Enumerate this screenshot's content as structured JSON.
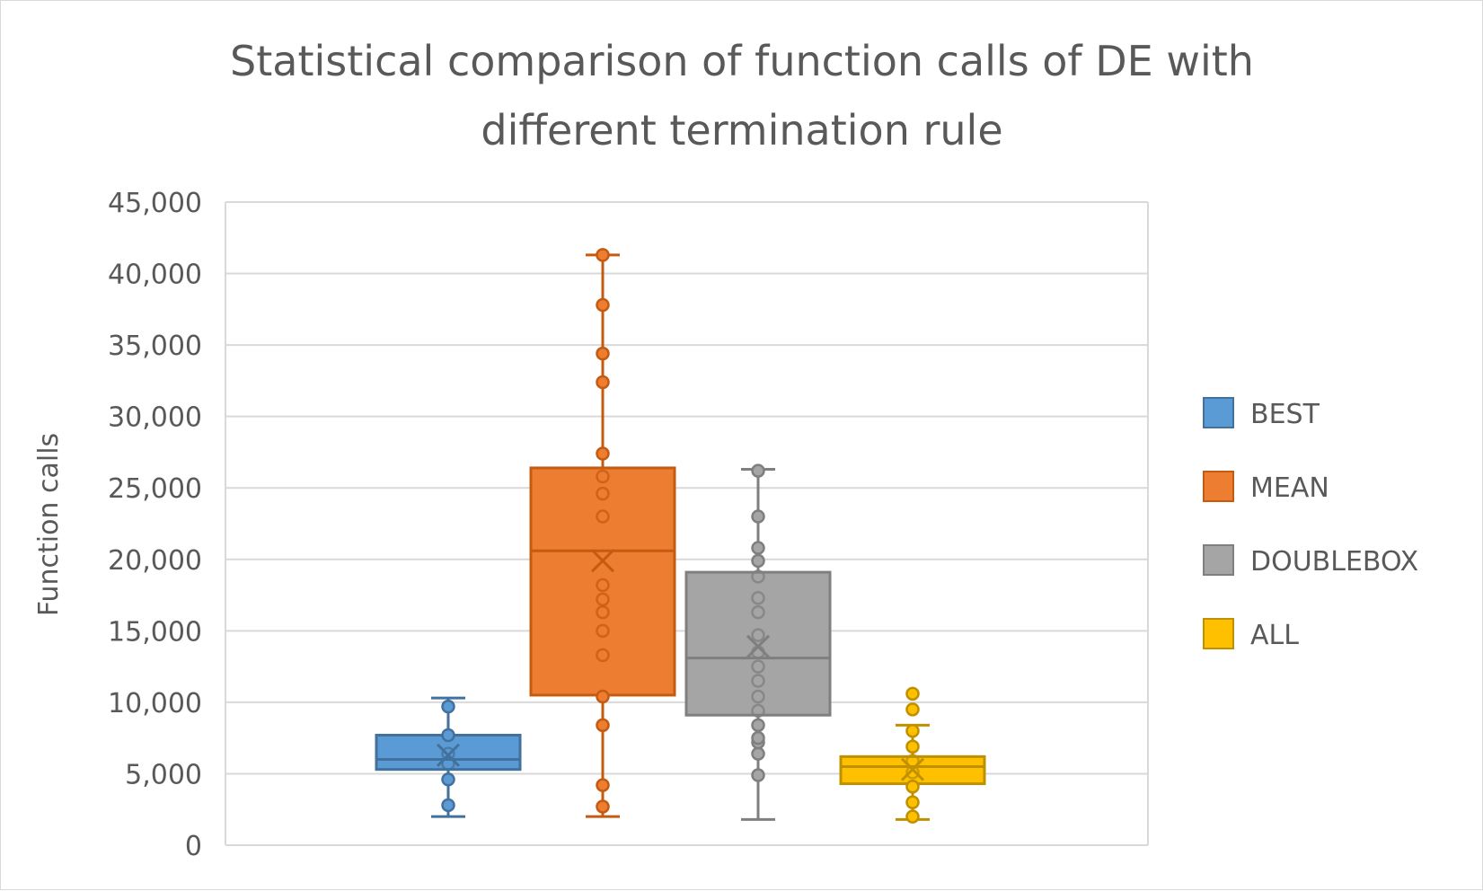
{
  "chart_data": {
    "type": "box",
    "title_line1": "Statistical comparison of function calls of DE with",
    "title_line2": "different termination rule",
    "ylabel": "Function calls",
    "xlabel": "",
    "ylim": [
      0,
      45000
    ],
    "yticks": [
      0,
      5000,
      10000,
      15000,
      20000,
      25000,
      30000,
      35000,
      40000,
      45000
    ],
    "ytick_labels": [
      "0",
      "5,000",
      "10,000",
      "15,000",
      "20,000",
      "25,000",
      "30,000",
      "35,000",
      "40,000",
      "45,000"
    ],
    "grid": true,
    "legend_position": "right",
    "series": [
      {
        "name": "BEST",
        "color": "#5b9bd5",
        "edge": "#41719c",
        "min": 2000,
        "q1": 5300,
        "median": 6000,
        "q3": 7700,
        "max": 10300,
        "mean": 6300,
        "points": [
          2800,
          4600,
          5700,
          6400,
          7700,
          9700
        ]
      },
      {
        "name": "MEAN",
        "color": "#ed7d31",
        "edge": "#c55a11",
        "min": 2000,
        "q1": 10500,
        "median": 20600,
        "q3": 26400,
        "max": 41300,
        "mean": 19900,
        "points": [
          2700,
          4200,
          8400,
          10400,
          13300,
          15000,
          16300,
          17200,
          18200,
          23000,
          24600,
          25800,
          27400,
          32400,
          34400,
          37800,
          41300
        ]
      },
      {
        "name": "DOUBLEBOX",
        "color": "#a5a5a5",
        "edge": "#7f7f7f",
        "min": 1800,
        "q1": 9100,
        "median": 13100,
        "q3": 19100,
        "max": 26300,
        "mean": 13900,
        "points": [
          4900,
          6400,
          7200,
          7500,
          8400,
          9400,
          10400,
          11500,
          12500,
          13500,
          14700,
          16300,
          17300,
          18800,
          19900,
          20800,
          23000,
          26200
        ]
      },
      {
        "name": "ALL",
        "color": "#ffc000",
        "edge": "#bf9000",
        "min": 1800,
        "q1": 4300,
        "median": 5500,
        "q3": 6200,
        "max": 8400,
        "mean": 5300,
        "points": [
          2000,
          3000,
          4100,
          5100,
          5900,
          6900,
          8000,
          9500,
          10600
        ]
      }
    ]
  }
}
